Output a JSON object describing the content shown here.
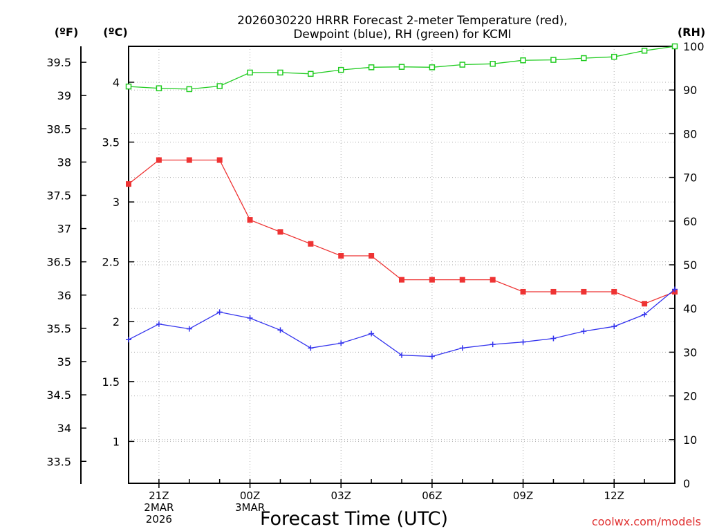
{
  "chart_data": {
    "type": "line",
    "title_lines": [
      "2026030220 HRRR Forecast 2-meter Temperature (red),",
      "Dewpoint (blue), RH (green) for KCMI"
    ],
    "units": {
      "fahrenheit": "(ºF)",
      "celsius": "(ºC)",
      "rh": "(RH)"
    },
    "xlabel": "Forecast Time (UTC)",
    "credit": "coolwx.com/models",
    "credit_color": "#e03030",
    "grid": true,
    "x_hours": [
      0,
      1,
      2,
      3,
      4,
      5,
      6,
      7,
      8,
      9,
      10,
      11,
      12,
      13,
      14,
      15,
      16,
      17,
      18
    ],
    "x_tick_labels": [
      {
        "hour": 1,
        "lines": [
          "21Z",
          "2MAR",
          "2026"
        ]
      },
      {
        "hour": 4,
        "lines": [
          "00Z",
          "3MAR"
        ]
      },
      {
        "hour": 7,
        "lines": [
          "03Z"
        ]
      },
      {
        "hour": 10,
        "lines": [
          "06Z"
        ]
      },
      {
        "hour": 13,
        "lines": [
          "09Z"
        ]
      },
      {
        "hour": 16,
        "lines": [
          "12Z"
        ]
      }
    ],
    "celsius_axis": {
      "min": 0.65,
      "max": 4.3,
      "ticks": [
        "1",
        "1.5",
        "2",
        "2.5",
        "3",
        "3.5",
        "4"
      ]
    },
    "fahrenheit_ticks": [
      "33.5",
      "34",
      "34.5",
      "35",
      "35.5",
      "36",
      "36.5",
      "37",
      "37.5",
      "38",
      "38.5",
      "39",
      "39.5"
    ],
    "rh_axis": {
      "min": 0,
      "max": 100,
      "ticks": [
        "0",
        "10",
        "20",
        "30",
        "40",
        "50",
        "60",
        "70",
        "80",
        "90",
        "100"
      ]
    },
    "series": [
      {
        "name": "Temperature",
        "axis": "celsius",
        "color": "#ee3333",
        "marker": "filled-square",
        "values": [
          3.15,
          3.35,
          3.35,
          3.35,
          2.85,
          2.75,
          2.65,
          2.55,
          2.55,
          2.35,
          2.35,
          2.35,
          2.35,
          2.25,
          2.25,
          2.25,
          2.25,
          2.15,
          2.25
        ]
      },
      {
        "name": "Dewpoint",
        "axis": "celsius",
        "color": "#3333ee",
        "marker": "plus",
        "values": [
          1.85,
          1.98,
          1.94,
          2.08,
          2.03,
          1.93,
          1.78,
          1.82,
          1.9,
          1.72,
          1.71,
          1.78,
          1.81,
          1.83,
          1.86,
          1.92,
          1.96,
          2.06,
          2.27
        ]
      },
      {
        "name": "RH",
        "axis": "rh",
        "color": "#22cc22",
        "marker": "open-square",
        "values": [
          90.8,
          90.4,
          90.2,
          90.9,
          94.0,
          94.0,
          93.7,
          94.6,
          95.2,
          95.3,
          95.2,
          95.8,
          96.0,
          96.8,
          96.9,
          97.3,
          97.6,
          99.0,
          100.0
        ]
      }
    ]
  }
}
